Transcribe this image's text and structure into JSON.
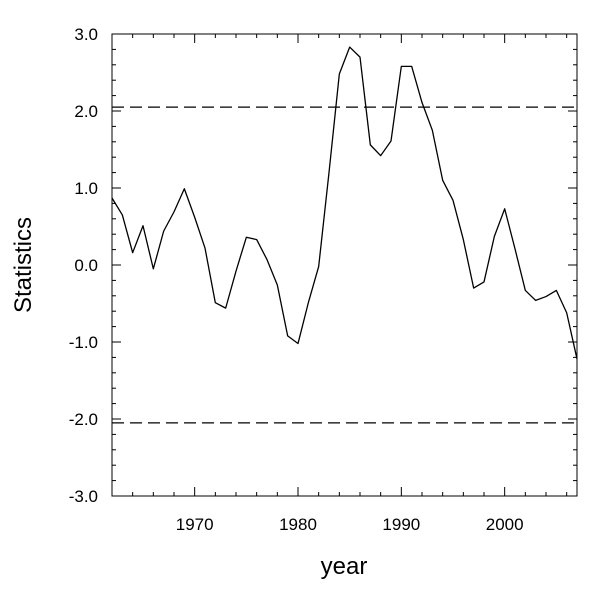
{
  "chart_data": {
    "type": "line",
    "title": "",
    "xlabel": "year",
    "ylabel": "Statistics",
    "xlim": [
      1962,
      2007
    ],
    "ylim": [
      -3.0,
      3.0
    ],
    "x_ticks": [
      1970,
      1980,
      1990,
      2000
    ],
    "x_tick_labels": [
      "1970",
      "1980",
      "1990",
      "2000"
    ],
    "y_ticks": [
      3.0,
      2.0,
      1.0,
      0.0,
      -1.0,
      -2.0,
      -3.0
    ],
    "y_tick_labels": [
      "3.0",
      "2.0",
      "1.0",
      "0.0",
      "-1.0",
      "-2.0",
      "-3.0"
    ],
    "grid": false,
    "line_color": "#000000",
    "series": [
      {
        "x": [
          1962,
          1963,
          1964,
          1965,
          1966,
          1967,
          1968,
          1969,
          1970,
          1971,
          1972,
          1973,
          1974,
          1975,
          1976,
          1977,
          1978,
          1979,
          1980,
          1981,
          1982,
          1983,
          1984,
          1985,
          1986,
          1987,
          1988,
          1989,
          1990,
          1991,
          1992,
          1993,
          1994,
          1995,
          1996,
          1997,
          1998,
          1999,
          2000,
          2001,
          2002,
          2003,
          2004,
          2005,
          2006,
          2007
        ],
        "values": [
          0.87,
          0.65,
          0.16,
          0.51,
          -0.05,
          0.44,
          0.69,
          0.99,
          0.62,
          0.22,
          -0.49,
          -0.56,
          -0.08,
          0.36,
          0.33,
          0.07,
          -0.26,
          -0.92,
          -1.02,
          -0.49,
          -0.02,
          1.2,
          2.48,
          2.83,
          2.7,
          1.56,
          1.42,
          1.61,
          2.58,
          2.58,
          2.11,
          1.75,
          1.1,
          0.84,
          0.33,
          -0.3,
          -0.22,
          0.37,
          0.73,
          0.21,
          -0.33,
          -0.46,
          -0.41,
          -0.33,
          -0.62,
          -1.22
        ]
      }
    ],
    "reference_lines": [
      {
        "axis": "y",
        "value": 2.05,
        "style": "dashed"
      },
      {
        "axis": "y",
        "value": -2.05,
        "style": "dashed"
      }
    ]
  }
}
